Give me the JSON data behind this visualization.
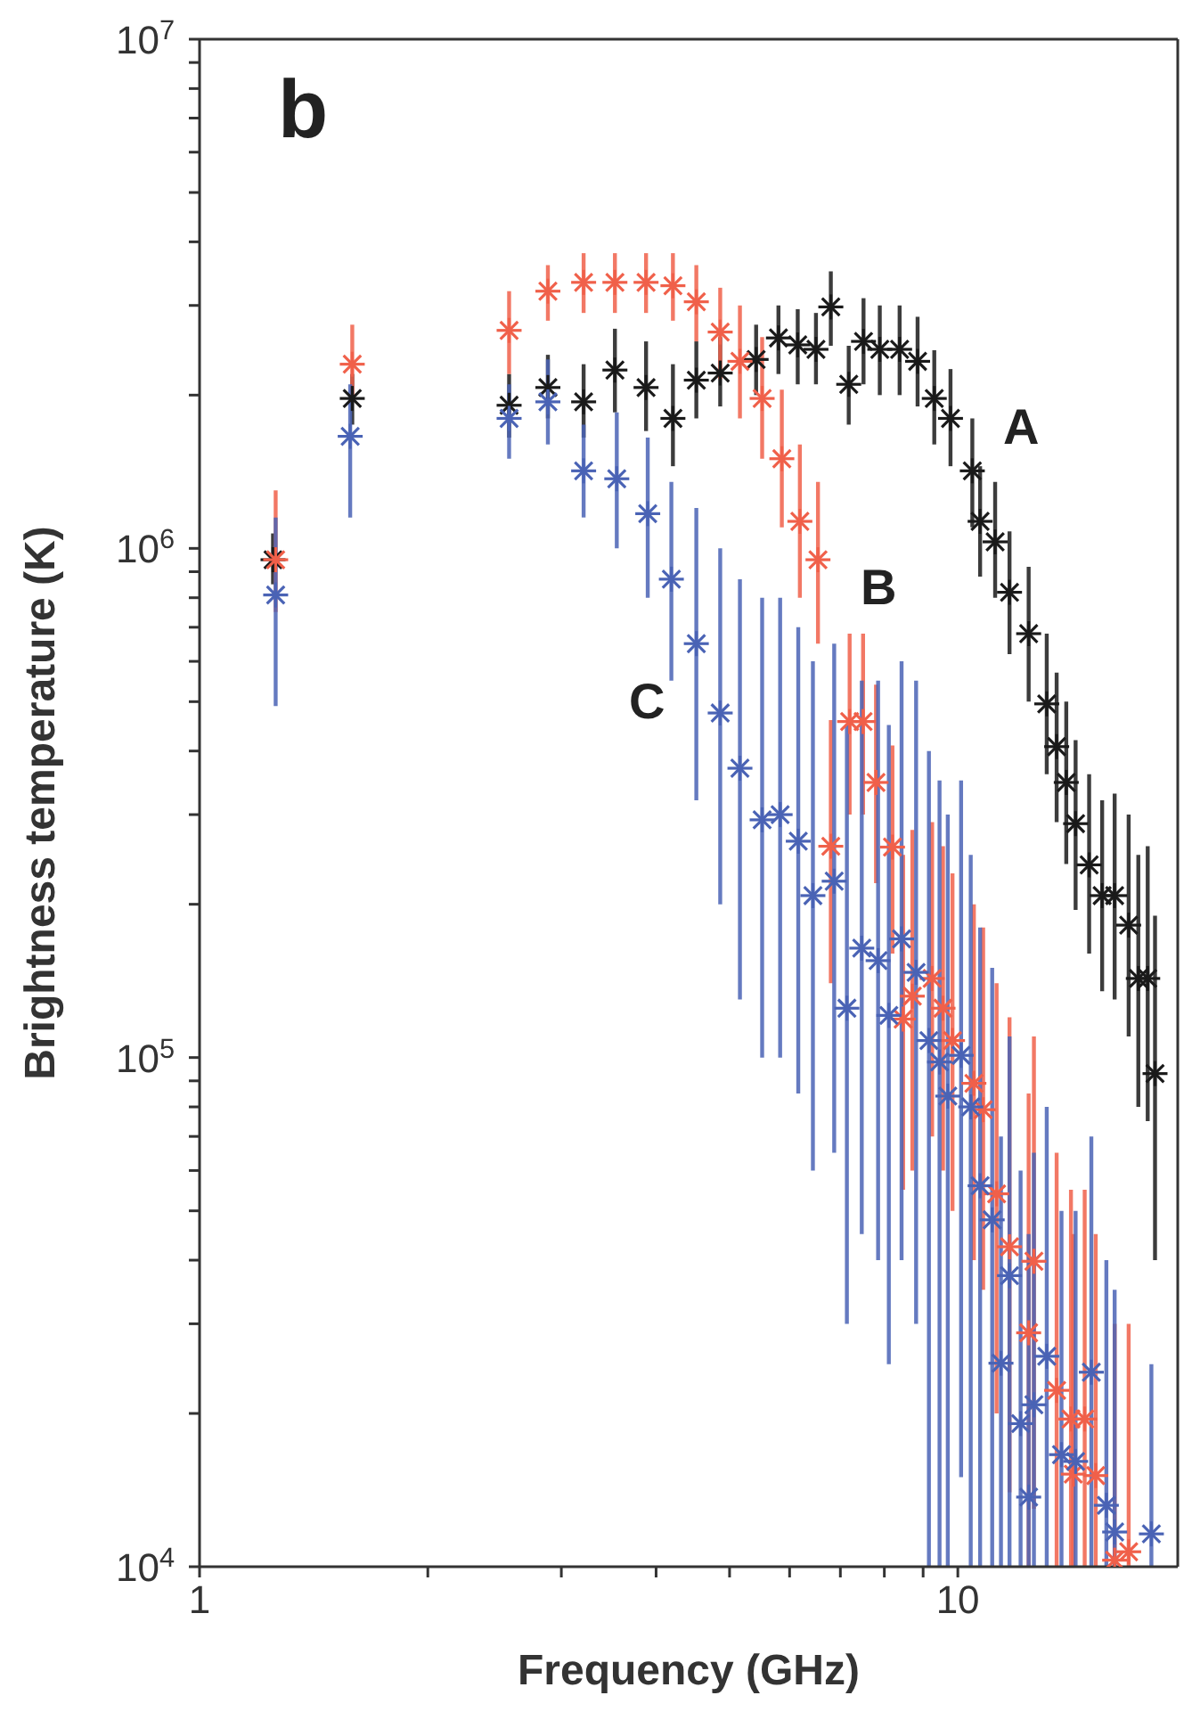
{
  "chart_data": {
    "type": "scatter",
    "xlabel": "Frequency (GHz)",
    "ylabel": "Brightness temperature (K)",
    "log": "xy",
    "marker": "cross",
    "legend": false,
    "xlim": [
      1,
      19.5
    ],
    "xticks": [
      1,
      {
        "value": 2,
        "label": null
      },
      {
        "value": 3,
        "label": null
      },
      {
        "value": 4,
        "label": null
      },
      {
        "value": 5,
        "label": null
      },
      {
        "value": 6,
        "label": null
      },
      {
        "value": 7,
        "label": null
      },
      {
        "value": 8,
        "label": null
      },
      {
        "value": 9,
        "label": null
      },
      10
    ],
    "ylim": [
      10000,
      10000000
    ],
    "yticks": [
      {
        "value": 10000,
        "label": "10$^{4}$"
      },
      {
        "value": 20000,
        "label": null
      },
      {
        "value": 30000,
        "label": null
      },
      {
        "value": 40000,
        "label": null
      },
      {
        "value": 50000,
        "label": null
      },
      {
        "value": 60000,
        "label": null
      },
      {
        "value": 70000,
        "label": null
      },
      {
        "value": 80000,
        "label": null
      },
      {
        "value": 90000,
        "label": null
      },
      {
        "value": 100000,
        "label": "10$^{5}$"
      },
      {
        "value": 200000,
        "label": null
      },
      {
        "value": 300000,
        "label": null
      },
      {
        "value": 400000,
        "label": null
      },
      {
        "value": 500000,
        "label": null
      },
      {
        "value": 600000,
        "label": null
      },
      {
        "value": 700000,
        "label": null
      },
      {
        "value": 800000,
        "label": null
      },
      {
        "value": 900000,
        "label": null
      },
      {
        "value": 1000000,
        "label": "10$^{6}$"
      },
      {
        "value": 2000000,
        "label": null
      },
      {
        "value": 3000000,
        "label": null
      },
      {
        "value": 4000000,
        "label": null
      },
      {
        "value": 5000000,
        "label": null
      },
      {
        "value": 6000000,
        "label": null
      },
      {
        "value": 7000000,
        "label": null
      },
      {
        "value": 8000000,
        "label": null
      },
      {
        "value": 9000000,
        "label": null
      },
      {
        "value": 10000000,
        "label": "10$^{7}$"
      }
    ],
    "annotations": [
      "b",
      "A",
      "B",
      "C"
    ],
    "series": [
      {
        "color": "#1a1a1a",
        "x": [
          1.25,
          1.59,
          2.56,
          2.88,
          3.21,
          3.53,
          3.88,
          4.21,
          4.52,
          4.86,
          5.42,
          5.8,
          6.15,
          6.5,
          6.8,
          7.18,
          7.51,
          7.89,
          8.38,
          8.85,
          9.31,
          9.78,
          10.45,
          10.7,
          11.2,
          11.7,
          12.4,
          13.1,
          13.5,
          13.9,
          14.3,
          14.9,
          15.5,
          16.1,
          16.8,
          17.3,
          17.8,
          18.2
        ],
        "values": [
          950000,
          1970000,
          1910000,
          2070000,
          1940000,
          2240000,
          2070000,
          1800000,
          2140000,
          2210000,
          2350000,
          2590000,
          2510000,
          2460000,
          2980000,
          2100000,
          2550000,
          2460000,
          2460000,
          2330000,
          1970000,
          1800000,
          1420000,
          1130000,
          1030000,
          820000,
          680000,
          495000,
          408000,
          347000,
          288000,
          239000,
          208000,
          208000,
          182000,
          143000,
          143000,
          93000
        ],
        "errors": [
          [
            850000,
            1070000
          ],
          [
            1750000,
            2200000
          ],
          [
            1650000,
            2200000
          ],
          [
            1800000,
            2400000
          ],
          [
            1650000,
            2300000
          ],
          [
            1850000,
            2700000
          ],
          [
            1700000,
            2550000
          ],
          [
            1450000,
            2300000
          ],
          [
            1800000,
            2550000
          ],
          [
            1900000,
            2600000
          ],
          [
            2000000,
            2750000
          ],
          [
            2200000,
            3000000
          ],
          [
            2100000,
            2950000
          ],
          [
            2100000,
            2900000
          ],
          [
            2500000,
            3500000
          ],
          [
            1750000,
            2500000
          ],
          [
            2100000,
            3100000
          ],
          [
            2000000,
            3000000
          ],
          [
            2000000,
            3000000
          ],
          [
            1900000,
            2850000
          ],
          [
            1600000,
            2450000
          ],
          [
            1450000,
            2250000
          ],
          [
            1100000,
            1800000
          ],
          [
            880000,
            1450000
          ],
          [
            800000,
            1350000
          ],
          [
            620000,
            1080000
          ],
          [
            500000,
            920000
          ],
          [
            360000,
            680000
          ],
          [
            290000,
            570000
          ],
          [
            240000,
            500000
          ],
          [
            195000,
            420000
          ],
          [
            160000,
            360000
          ],
          [
            135000,
            320000
          ],
          [
            130000,
            330000
          ],
          [
            110000,
            300000
          ],
          [
            80000,
            250000
          ],
          [
            75000,
            260000
          ],
          [
            40000,
            190000
          ]
        ]
      },
      {
        "color": "#f0604a",
        "x": [
          1.26,
          1.59,
          2.56,
          2.88,
          3.21,
          3.53,
          3.88,
          4.21,
          4.52,
          4.86,
          5.16,
          5.52,
          5.86,
          6.19,
          6.54,
          6.8,
          7.2,
          7.5,
          7.8,
          8.2,
          8.47,
          8.71,
          9.25,
          9.56,
          9.84,
          10.5,
          10.8,
          11.25,
          11.7,
          12.4,
          12.6,
          13.5,
          14.1,
          14.2,
          14.7,
          15.2,
          16.1,
          16.8
        ],
        "values": [
          950000,
          2300000,
          2680000,
          3200000,
          3330000,
          3330000,
          3330000,
          3280000,
          3050000,
          2660000,
          2330000,
          1970000,
          1500000,
          1130000,
          950000,
          260000,
          457000,
          457000,
          347000,
          259000,
          119000,
          132000,
          143000,
          125000,
          108000,
          89000,
          79000,
          54000,
          42500,
          28800,
          39800,
          22200,
          19500,
          15200,
          19500,
          15100,
          10300,
          10700
        ],
        "errors": [
          [
            750000,
            1300000
          ],
          [
            1950000,
            2750000
          ],
          [
            2200000,
            3200000
          ],
          [
            2800000,
            3600000
          ],
          [
            2900000,
            3800000
          ],
          [
            2900000,
            3800000
          ],
          [
            2900000,
            3800000
          ],
          [
            2800000,
            3800000
          ],
          [
            2550000,
            3600000
          ],
          [
            2150000,
            3250000
          ],
          [
            1800000,
            3000000
          ],
          [
            1500000,
            2600000
          ],
          [
            1100000,
            2050000
          ],
          [
            800000,
            1600000
          ],
          [
            650000,
            1350000
          ],
          [
            140000,
            460000
          ],
          [
            300000,
            680000
          ],
          [
            300000,
            680000
          ],
          [
            220000,
            540000
          ],
          [
            160000,
            410000
          ],
          [
            55000,
            250000
          ],
          [
            60000,
            280000
          ],
          [
            70000,
            290000
          ],
          [
            60000,
            260000
          ],
          [
            50000,
            230000
          ],
          [
            40000,
            200000
          ],
          [
            35000,
            180000
          ],
          [
            20000,
            140000
          ],
          [
            14000,
            120000
          ],
          [
            10000,
            85000
          ],
          [
            13000,
            110000
          ],
          [
            10000,
            65000
          ],
          [
            10000,
            55000
          ],
          [
            10000,
            45000
          ],
          [
            10000,
            55000
          ],
          [
            10000,
            45000
          ],
          [
            10000,
            30000
          ],
          [
            10000,
            30000
          ]
        ]
      },
      {
        "color": "#4a63b5",
        "x": [
          1.26,
          1.58,
          2.56,
          2.88,
          3.21,
          3.55,
          3.9,
          4.19,
          4.52,
          4.86,
          5.16,
          5.52,
          5.83,
          6.16,
          6.44,
          6.87,
          7.14,
          7.47,
          7.85,
          8.11,
          8.43,
          8.81,
          9.16,
          9.46,
          9.7,
          10.1,
          10.4,
          10.7,
          11.1,
          11.4,
          11.7,
          12.1,
          12.4,
          12.6,
          13.1,
          13.7,
          14.3,
          15.0,
          15.7,
          16.1,
          18.0
        ],
        "values": [
          810000,
          1660000,
          1800000,
          1940000,
          1420000,
          1370000,
          1170000,
          870000,
          650000,
          475000,
          370000,
          293000,
          300000,
          266000,
          208000,
          222000,
          125000,
          164000,
          155000,
          121000,
          171000,
          147000,
          108000,
          98000,
          84000,
          101000,
          80000,
          56000,
          48000,
          25100,
          37300,
          19100,
          13700,
          20800,
          25900,
          16600,
          16100,
          24100,
          13200,
          11700,
          11600
        ],
        "errors": [
          [
            490000,
            1150000
          ],
          [
            1150000,
            2100000
          ],
          [
            1500000,
            2100000
          ],
          [
            1600000,
            2350000
          ],
          [
            1150000,
            1750000
          ],
          [
            1000000,
            1850000
          ],
          [
            800000,
            1650000
          ],
          [
            550000,
            1350000
          ],
          [
            320000,
            1200000
          ],
          [
            200000,
            1000000
          ],
          [
            130000,
            870000
          ],
          [
            100000,
            800000
          ],
          [
            100000,
            800000
          ],
          [
            85000,
            700000
          ],
          [
            60000,
            600000
          ],
          [
            65000,
            650000
          ],
          [
            30000,
            450000
          ],
          [
            45000,
            550000
          ],
          [
            40000,
            550000
          ],
          [
            25000,
            450000
          ],
          [
            40000,
            600000
          ],
          [
            30000,
            550000
          ],
          [
            10000,
            400000
          ],
          [
            10000,
            350000
          ],
          [
            10000,
            300000
          ],
          [
            15000,
            350000
          ],
          [
            10000,
            250000
          ],
          [
            10000,
            180000
          ],
          [
            10000,
            150000
          ],
          [
            10000,
            70000
          ],
          [
            10000,
            110000
          ],
          [
            10000,
            60000
          ],
          [
            10000,
            45000
          ],
          [
            10000,
            65000
          ],
          [
            10000,
            80000
          ],
          [
            10000,
            50000
          ],
          [
            10000,
            50000
          ],
          [
            10000,
            70000
          ],
          [
            10000,
            40000
          ],
          [
            10000,
            35000
          ],
          [
            10000,
            25000
          ]
        ]
      }
    ]
  }
}
